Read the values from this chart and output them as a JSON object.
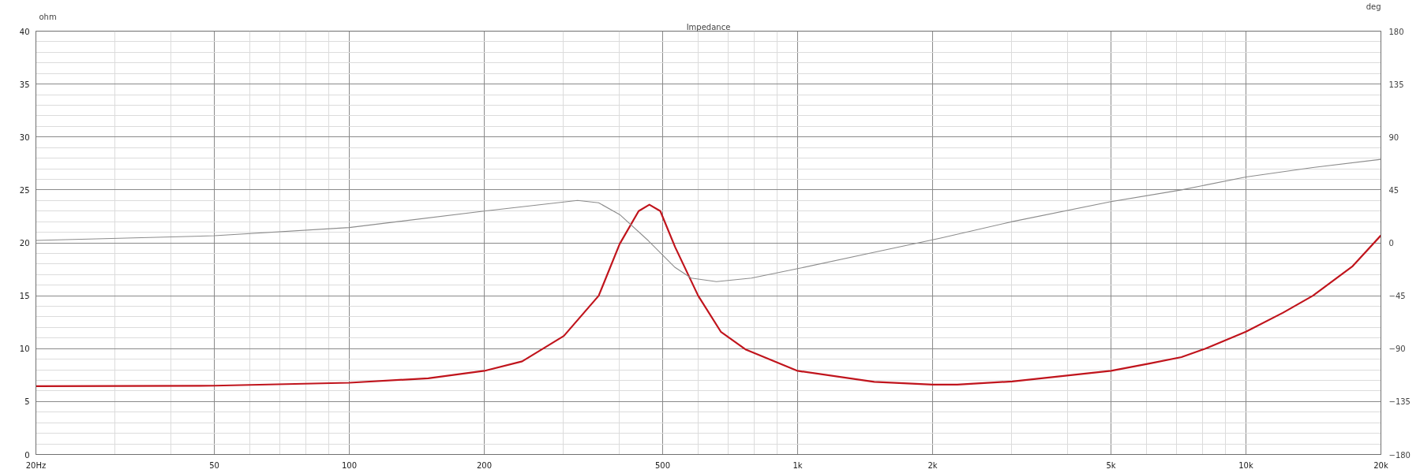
{
  "chart_data": {
    "type": "line",
    "title": "Impedance",
    "ylabel": "ohm",
    "y2label": "deg",
    "x": [
      20,
      50,
      100,
      150,
      200,
      243,
      301,
      360,
      401,
      442,
      467,
      494,
      533,
      600,
      674,
      767,
      1000,
      1482,
      2000,
      2270,
      3010,
      5000,
      6090,
      7180,
      8120,
      10000,
      12100,
      14100,
      17300,
      20000
    ],
    "series": [
      {
        "color": "#c0141c",
        "values": [
          6.45,
          6.5,
          6.78,
          7.2,
          7.9,
          8.8,
          11.2,
          15.0,
          19.9,
          23.0,
          23.6,
          23.0,
          19.6,
          15.0,
          11.6,
          9.9,
          7.9,
          6.86,
          6.6,
          6.6,
          6.9,
          7.9,
          8.6,
          9.2,
          10.0,
          11.6,
          13.4,
          15.0,
          17.8,
          20.7
        ]
      },
      {
        "color": "#8c8c8c",
        "axis": "y2",
        "x": [
          20,
          50,
          100,
          200,
          323,
          360,
          401,
          464,
          533,
          579,
          659,
          789,
          1000,
          1482,
          2085,
          3010,
          5000,
          7180,
          10000,
          14100,
          20000
        ],
        "values": [
          2,
          6,
          13,
          27,
          36,
          34,
          24,
          2,
          -21,
          -30,
          -33,
          -30,
          -22,
          -8,
          4,
          18,
          35,
          45,
          56,
          64,
          71
        ]
      }
    ],
    "log": "x",
    "grid": true,
    "marker": "none",
    "line_style": "solid",
    "xlim": [
      20,
      20000
    ],
    "xticks": [
      {
        "value": 20,
        "label": "20Hz"
      },
      50,
      100,
      200,
      500,
      {
        "value": 1000,
        "label": "1k"
      },
      {
        "value": 2000,
        "label": "2k"
      },
      {
        "value": 5000,
        "label": "5k"
      },
      {
        "value": 10000,
        "label": "10k"
      },
      {
        "value": 20000,
        "label": "20k"
      }
    ],
    "ylim": [
      0,
      40
    ],
    "yticks": [
      0,
      5,
      10,
      15,
      20,
      25,
      30,
      35,
      40
    ],
    "y2lim": [
      -180,
      180
    ],
    "y2ticks": [
      -180,
      -135,
      -90,
      -45,
      0,
      45,
      90,
      135,
      180
    ]
  }
}
